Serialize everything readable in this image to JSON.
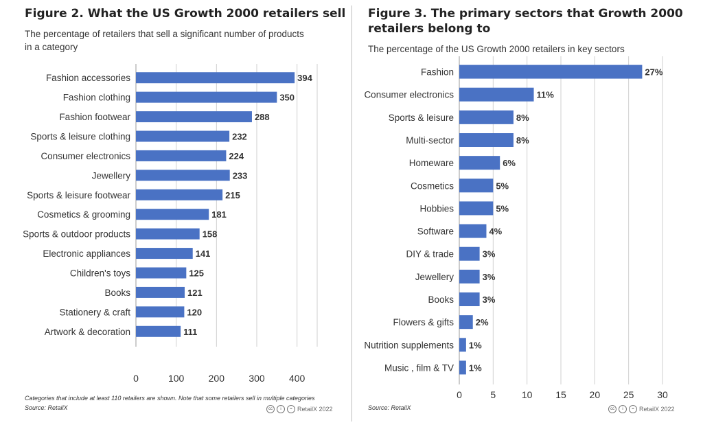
{
  "chart_data": [
    {
      "type": "bar",
      "orientation": "horizontal",
      "title": "Figure 2. What the US Growth 2000 retailers sell",
      "subtitle": "The percentage of retailers that sell a significant number of products in a category",
      "categories": [
        "Fashion accessories",
        "Fashion clothing",
        "Fashion footwear",
        "Sports & leisure clothing",
        "Consumer electronics",
        "Jewellery",
        "Sports & leisure footwear",
        "Cosmetics & grooming",
        "Sports & outdoor products",
        "Electronic appliances",
        "Children's toys",
        "Books",
        "Stationery & craft",
        "Artwork & decoration"
      ],
      "values": [
        394,
        350,
        288,
        232,
        224,
        233,
        215,
        181,
        158,
        141,
        125,
        121,
        120,
        111
      ],
      "value_labels": [
        "394",
        "350",
        "288",
        "232",
        "224",
        "233",
        "215",
        "181",
        "158",
        "141",
        "125",
        "121",
        "120",
        "111"
      ],
      "xlim": [
        0,
        450
      ],
      "xticks": [
        0,
        100,
        200,
        300,
        400
      ],
      "xtick_labels": [
        "0",
        "100",
        "200",
        "300",
        "400"
      ],
      "bar_color": "#4a72c4",
      "grid": true,
      "footnote": "Categories that include at least 110 retailers are shown. Note that some retailers sell in multiple categories",
      "source": "Source: RetailX",
      "credit": "RetailX 2022"
    },
    {
      "type": "bar",
      "orientation": "horizontal",
      "title": "Figure 3. The primary sectors that Growth 2000 retailers belong to",
      "subtitle": "The percentage of the US Growth 2000 retailers in key sectors",
      "categories": [
        "Fashion",
        "Consumer electronics",
        "Sports & leisure",
        "Multi-sector",
        "Homeware",
        "Cosmetics",
        "Hobbies",
        "Software",
        "DIY & trade",
        "Jewellery",
        "Books",
        "Flowers & gifts",
        "Nutrition supplements",
        "Music , film & TV"
      ],
      "values": [
        27,
        11,
        8,
        8,
        6,
        5,
        5,
        4,
        3,
        3,
        3,
        2,
        1,
        1
      ],
      "value_labels": [
        "27%",
        "11%",
        "8%",
        "8%",
        "6%",
        "5%",
        "5%",
        "4%",
        "3%",
        "3%",
        "3%",
        "2%",
        "1%",
        "1%"
      ],
      "xlim": [
        0,
        30
      ],
      "xticks": [
        0,
        5,
        10,
        15,
        20,
        25,
        30
      ],
      "xtick_labels": [
        "0",
        "5",
        "10",
        "15",
        "20",
        "25",
        "30"
      ],
      "bar_color": "#4a72c4",
      "grid": true,
      "source": "Source: RetailX",
      "credit": "RetailX 2022"
    }
  ]
}
